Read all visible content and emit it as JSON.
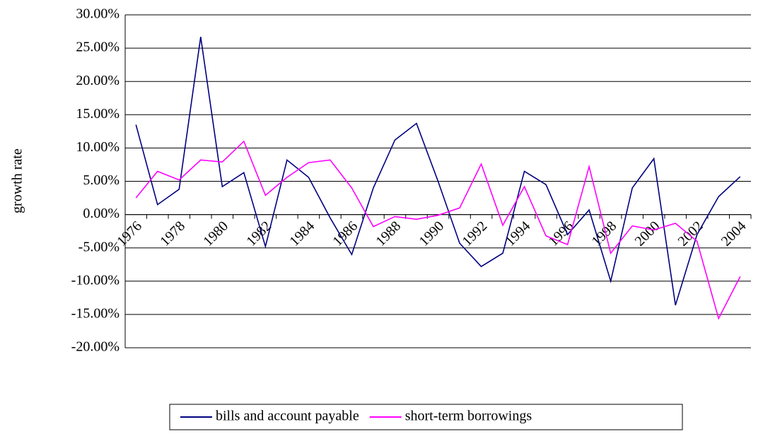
{
  "chart_data": {
    "type": "line",
    "y_label": "growth rate",
    "categories": [
      "1976",
      null,
      "1978",
      null,
      "1980",
      null,
      "1982",
      null,
      "1984",
      null,
      "1986",
      null,
      "1988",
      null,
      "1990",
      null,
      "1992",
      null,
      "1994",
      null,
      "1996",
      null,
      "1998",
      null,
      "2000",
      null,
      "2002",
      null,
      "2004"
    ],
    "series": [
      {
        "name": "bills and account payable",
        "color": "#000080",
        "values": [
          13.5,
          1.5,
          3.8,
          26.7,
          4.2,
          6.3,
          -4.8,
          8.2,
          5.6,
          -0.5,
          -6,
          4,
          11.2,
          13.7,
          5,
          -4.3,
          -7.8,
          -5.8,
          6.5,
          4.5,
          -3,
          0.7,
          -10,
          4,
          8.4,
          -13.6,
          -3,
          2.7,
          5.7
        ]
      },
      {
        "name": "short-term borrowings",
        "color": "#ff00ff",
        "values": [
          2.5,
          6.5,
          5.2,
          8.2,
          7.9,
          11,
          2.9,
          5.6,
          7.8,
          8.2,
          4,
          -1.8,
          -0.3,
          -0.7,
          -0.1,
          1,
          7.6,
          -1.6,
          4.2,
          -3.2,
          -4.5,
          7.2,
          -5.8,
          -1.7,
          -2.3,
          -1.3,
          -4,
          -15.6,
          -9.3
        ]
      }
    ],
    "ylim": [
      -20,
      30
    ],
    "yticks": [
      {
        "value": -20,
        "label": "-20.00%"
      },
      {
        "value": -15,
        "label": "-15.00%"
      },
      {
        "value": -10,
        "label": "-10.00%"
      },
      {
        "value": -5,
        "label": "-5.00%"
      },
      {
        "value": 0,
        "label": "0.00%"
      },
      {
        "value": 5,
        "label": "5.00%"
      },
      {
        "value": 10,
        "label": "10.00%"
      },
      {
        "value": 15,
        "label": "15.00%"
      },
      {
        "value": 20,
        "label": "20.00%"
      },
      {
        "value": 25,
        "label": "25.00%"
      },
      {
        "value": 30,
        "label": "30.00%"
      }
    ],
    "grid": true,
    "legend": "bottom"
  }
}
